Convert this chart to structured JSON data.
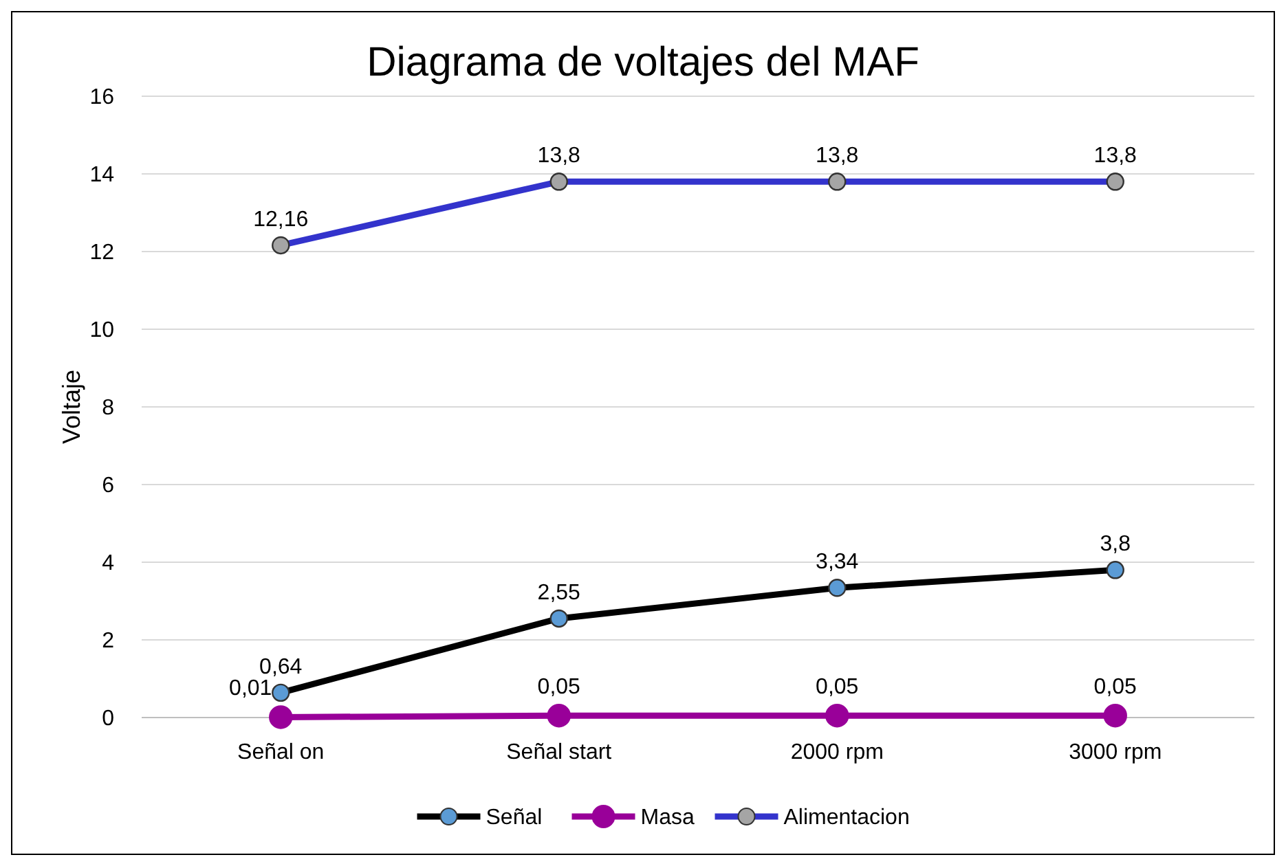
{
  "chart_data": {
    "type": "line",
    "title": "Diagrama de voltajes del MAF",
    "ylabel": "Voltaje",
    "categories": [
      "Señal on",
      "Señal start",
      "2000 rpm",
      "3000 rpm"
    ],
    "series": [
      {
        "name": "Señal",
        "color": "#000000",
        "values": [
          0.64,
          2.55,
          3.34,
          3.8
        ],
        "value_labels": [
          "0,64",
          "2,55",
          "3,34",
          "3,8"
        ]
      },
      {
        "name": "Masa",
        "color": "#990099",
        "values": [
          0.01,
          0.05,
          0.05,
          0.05
        ],
        "value_labels": [
          "0,01",
          "0,05",
          "0,05",
          "0,05"
        ]
      },
      {
        "name": "Alimentacion",
        "color": "#3333cc",
        "values": [
          12.16,
          13.8,
          13.8,
          13.8
        ],
        "value_labels": [
          "12,16",
          "13,8",
          "13,8",
          "13,8"
        ]
      }
    ],
    "ylim": [
      0,
      16
    ],
    "yticks": [
      0,
      2,
      4,
      6,
      8,
      10,
      12,
      14,
      16
    ],
    "grid": "y",
    "legend": "bottom",
    "marker": "circle",
    "line_style": "solid"
  }
}
